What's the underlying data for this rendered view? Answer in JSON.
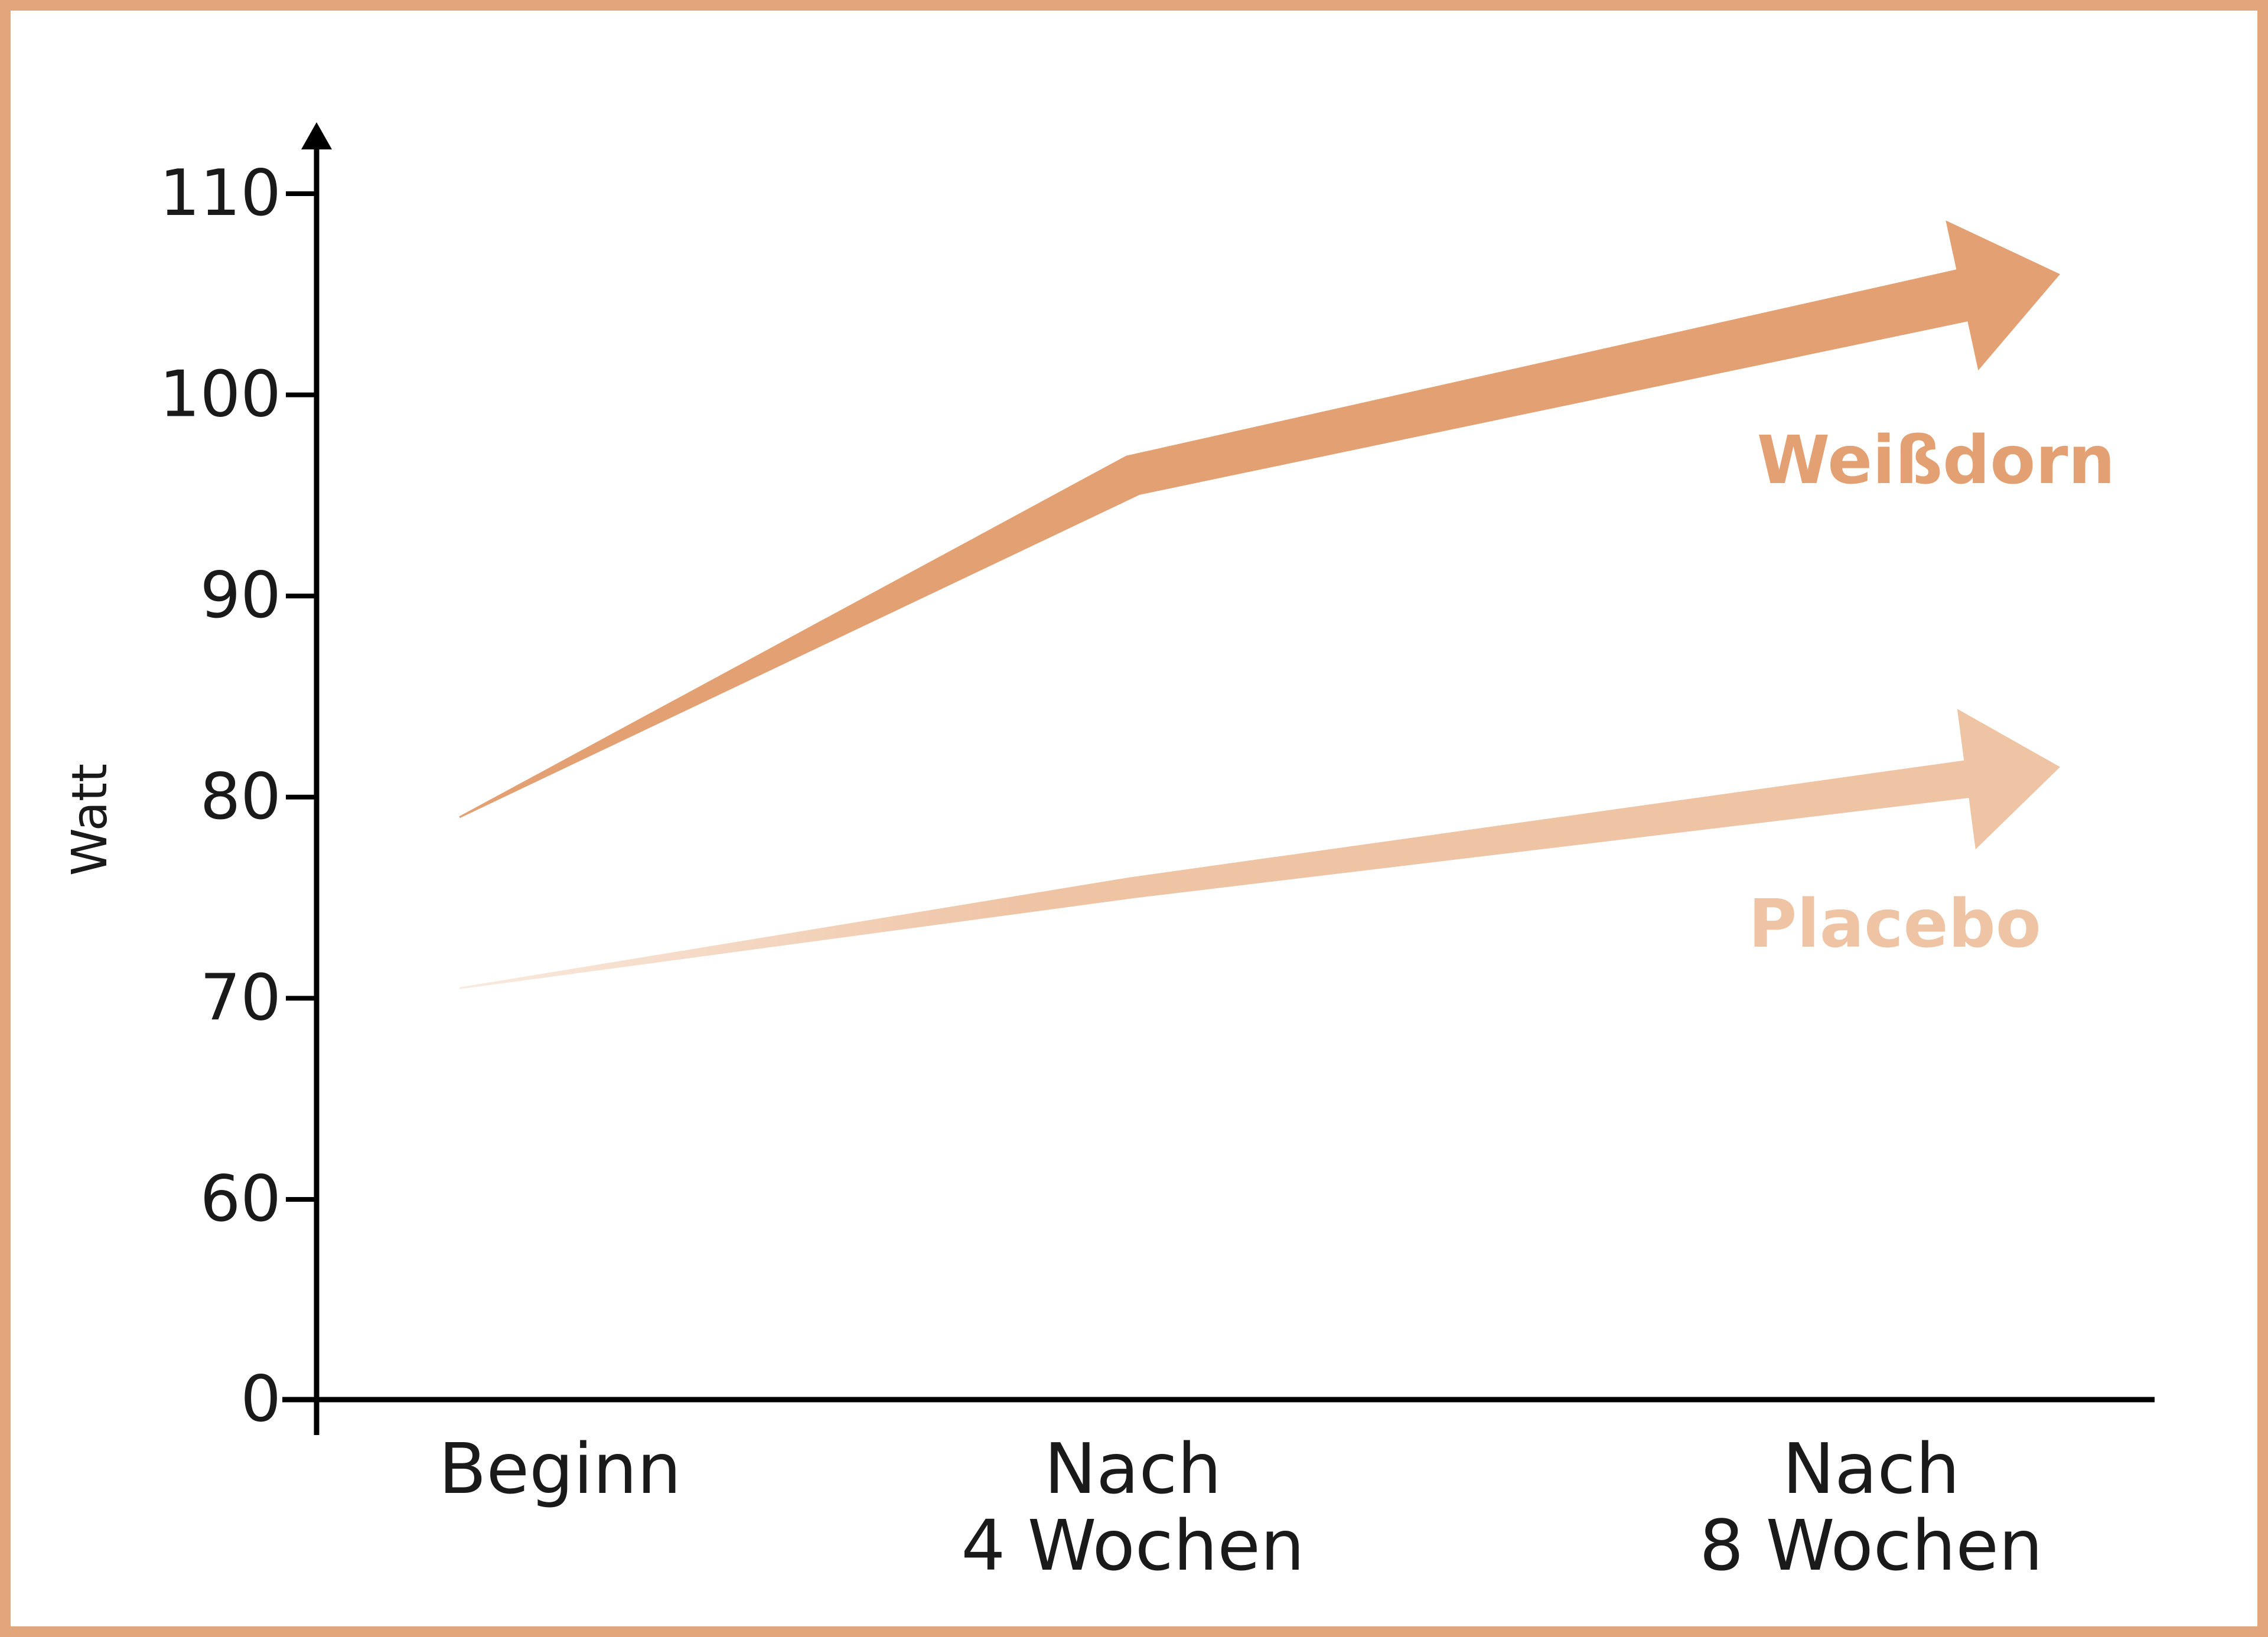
{
  "chart_data": {
    "type": "line",
    "title": "",
    "xlabel": "",
    "ylabel": "Watt",
    "categories": [
      [
        "Beginn"
      ],
      [
        "Nach",
        "4 Wochen"
      ],
      [
        "Nach",
        "8 Wochen"
      ]
    ],
    "y_ticks": [
      0,
      60,
      70,
      80,
      90,
      100,
      110
    ],
    "y_axis_break": "0 → 60",
    "ylim": [
      0,
      113
    ],
    "grid": false,
    "legend": "inline labels at arrow ends",
    "series": [
      {
        "name": "Weißdorn",
        "values": [
          79,
          96,
          106
        ],
        "color": "#e3a072"
      },
      {
        "name": "Placebo",
        "values": [
          70.5,
          75.5,
          81.5
        ],
        "color": "#efc4a5"
      }
    ]
  }
}
